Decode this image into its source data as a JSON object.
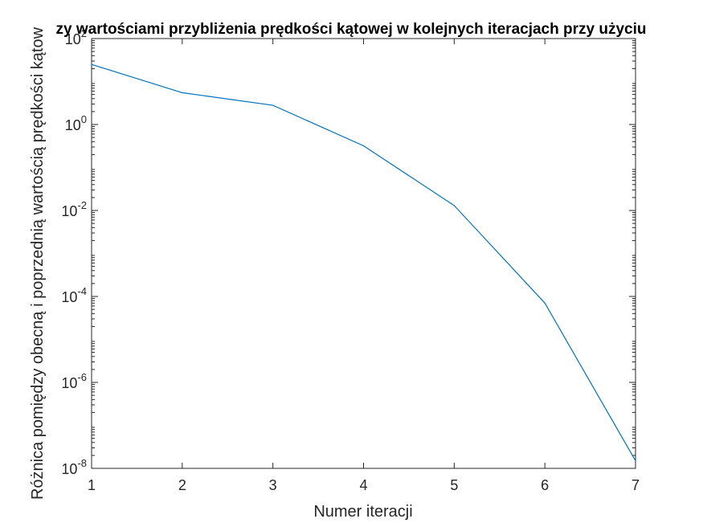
{
  "chart_data": {
    "type": "line",
    "title": "zy wartościami przybliżenia prędkości kątowej w kolejnych iteracjach przy użyciu",
    "xlabel": "Numer iteracji",
    "ylabel": "Różnica pomiędzy obecną i poprzednią wartością prędkości kątow",
    "x": [
      1,
      2,
      3,
      4,
      5,
      6,
      7
    ],
    "series": [
      {
        "values": [
          25,
          5.5,
          2.8,
          0.32,
          0.013,
          7e-05,
          1.5e-08
        ],
        "color": "#0072BD"
      }
    ],
    "xlim": [
      1,
      7
    ],
    "ylim": [
      1e-08,
      100
    ],
    "yscale": "log",
    "xticks": [
      "1",
      "2",
      "3",
      "4",
      "5",
      "6",
      "7"
    ],
    "yticks": [
      {
        "base": "10",
        "exp": "-8"
      },
      {
        "base": "10",
        "exp": "-6"
      },
      {
        "base": "10",
        "exp": "-4"
      },
      {
        "base": "10",
        "exp": "-2"
      },
      {
        "base": "10",
        "exp": "0"
      },
      {
        "base": "10",
        "exp": "2"
      }
    ],
    "grid": false,
    "axis_color": "#262626"
  }
}
